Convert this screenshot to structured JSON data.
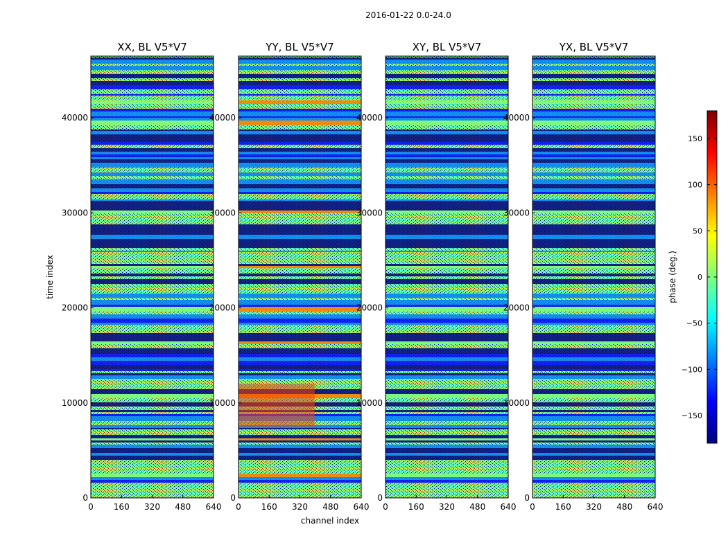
{
  "chart_data": {
    "type": "heatmap",
    "title": "2016-01-22 0.0-24.0",
    "xlabel": "channel index",
    "ylabel": "time index",
    "xlim": [
      0,
      640
    ],
    "ylim": [
      0,
      46500
    ],
    "x_ticks": [
      "0",
      "160",
      "320",
      "480",
      "640"
    ],
    "y_ticks": [
      "0",
      "10000",
      "20000",
      "30000",
      "40000"
    ],
    "panels": [
      {
        "title": "XX, BL V5*V7"
      },
      {
        "title": "YY, BL V5*V7"
      },
      {
        "title": "XY, BL V5*V7"
      },
      {
        "title": "YX, BL V5*V7"
      }
    ],
    "colorbar": {
      "label": "phase (deg.)",
      "range": [
        -180,
        180
      ],
      "ticks": [
        "150",
        "100",
        "50",
        "0",
        "−50",
        "−100",
        "−150"
      ],
      "tick_values": [
        150,
        100,
        50,
        0,
        -50,
        -100,
        -150
      ],
      "colormap": "jet"
    }
  },
  "colors": {
    "jet": [
      "#00007f",
      "#0000ff",
      "#007fff",
      "#00ffff",
      "#7fff7f",
      "#ffff00",
      "#ff7f00",
      "#ff0000",
      "#7f0000"
    ],
    "noise_green": "#7fff7f",
    "dark_band": "#00007f"
  }
}
